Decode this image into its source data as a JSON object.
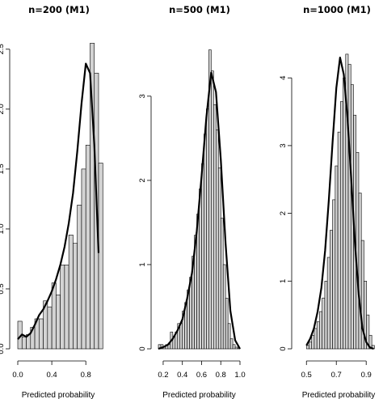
{
  "chart_data": [
    {
      "type": "bar",
      "title": "n=200 (M1)",
      "xlabel": "Predicted probability",
      "ylabel": "",
      "xlim": [
        0.0,
        0.95
      ],
      "ylim": [
        0,
        2.6
      ],
      "xticks": [
        0.0,
        0.4,
        0.8
      ],
      "xtick_labels": [
        "0.0",
        "0.4",
        "0.8"
      ],
      "yticks": [
        0.0,
        0.5,
        1.0,
        1.5,
        2.0,
        2.5
      ],
      "ytick_labels": [
        "0.0",
        "0.5",
        "1.0",
        "1.5",
        "2.0",
        "2.5"
      ],
      "bin_start": 0.0,
      "bin_width": 0.05,
      "values": [
        0.23,
        0.1,
        0.12,
        0.18,
        0.25,
        0.25,
        0.4,
        0.35,
        0.55,
        0.45,
        0.7,
        0.7,
        0.95,
        0.88,
        1.2,
        1.5,
        1.7,
        2.55,
        2.3,
        1.55
      ],
      "density_x": [
        0.0,
        0.05,
        0.1,
        0.15,
        0.2,
        0.25,
        0.3,
        0.35,
        0.4,
        0.45,
        0.5,
        0.55,
        0.6,
        0.65,
        0.7,
        0.75,
        0.8,
        0.85,
        0.9,
        0.95
      ],
      "density_y": [
        0.08,
        0.12,
        0.1,
        0.13,
        0.2,
        0.28,
        0.33,
        0.4,
        0.48,
        0.58,
        0.7,
        0.85,
        1.05,
        1.3,
        1.65,
        2.05,
        2.38,
        2.3,
        1.7,
        0.8
      ]
    },
    {
      "type": "bar",
      "title": "n=500 (M1)",
      "xlabel": "Predicted probability",
      "ylabel": "",
      "xlim": [
        0.15,
        1.0
      ],
      "ylim": [
        0,
        3.7
      ],
      "xticks": [
        0.2,
        0.4,
        0.6,
        0.8,
        1.0
      ],
      "xtick_labels": [
        "0.2",
        "0.4",
        "0.6",
        "0.8",
        "1.0"
      ],
      "yticks": [
        0,
        1,
        2,
        3
      ],
      "ytick_labels": [
        "0",
        "1",
        "2",
        "3"
      ],
      "bin_start": 0.15,
      "bin_width": 0.025,
      "values": [
        0.05,
        0.05,
        0.02,
        0.05,
        0.05,
        0.2,
        0.15,
        0.2,
        0.3,
        0.3,
        0.45,
        0.55,
        0.7,
        0.85,
        1.1,
        1.35,
        1.6,
        1.9,
        2.2,
        2.55,
        2.85,
        3.55,
        3.3,
        2.9,
        2.6,
        2.15,
        1.55,
        1.0,
        0.6,
        0.3,
        0.12,
        0.05,
        0.02,
        0.01
      ],
      "density_x": [
        0.15,
        0.2,
        0.25,
        0.3,
        0.35,
        0.4,
        0.45,
        0.5,
        0.55,
        0.6,
        0.65,
        0.7,
        0.75,
        0.8,
        0.85,
        0.9,
        0.95,
        1.0
      ],
      "density_y": [
        0.0,
        0.02,
        0.05,
        0.12,
        0.22,
        0.35,
        0.6,
        0.9,
        1.4,
        2.05,
        2.75,
        3.28,
        3.05,
        2.25,
        1.25,
        0.45,
        0.1,
        0.0
      ]
    },
    {
      "type": "bar",
      "title": "n=1000 (M1)",
      "xlabel": "Predicted probability",
      "ylabel": "",
      "xlim": [
        0.45,
        0.98
      ],
      "ylim": [
        0,
        4.6
      ],
      "xticks": [
        0.5,
        0.7,
        0.9
      ],
      "xtick_labels": [
        "0.5",
        "0.7",
        "0.9"
      ],
      "yticks": [
        0,
        1,
        2,
        3,
        4
      ],
      "ytick_labels": [
        "0",
        "1",
        "2",
        "3",
        "4"
      ],
      "bin_start": 0.5,
      "bin_width": 0.0175,
      "values": [
        0.05,
        0.1,
        0.2,
        0.3,
        0.4,
        0.55,
        0.75,
        1.0,
        1.35,
        1.75,
        2.2,
        2.7,
        3.2,
        3.65,
        4.0,
        4.35,
        4.2,
        3.9,
        3.45,
        2.9,
        2.3,
        1.6,
        1.0,
        0.5,
        0.2,
        0.05
      ],
      "density_x": [
        0.5,
        0.525,
        0.55,
        0.575,
        0.6,
        0.625,
        0.65,
        0.675,
        0.7,
        0.725,
        0.75,
        0.775,
        0.8,
        0.825,
        0.85,
        0.875,
        0.9,
        0.925,
        0.95
      ],
      "density_y": [
        0.05,
        0.15,
        0.3,
        0.55,
        0.9,
        1.45,
        2.2,
        3.05,
        3.85,
        4.3,
        4.05,
        3.4,
        2.5,
        1.55,
        0.8,
        0.3,
        0.1,
        0.02,
        0.0
      ]
    }
  ]
}
